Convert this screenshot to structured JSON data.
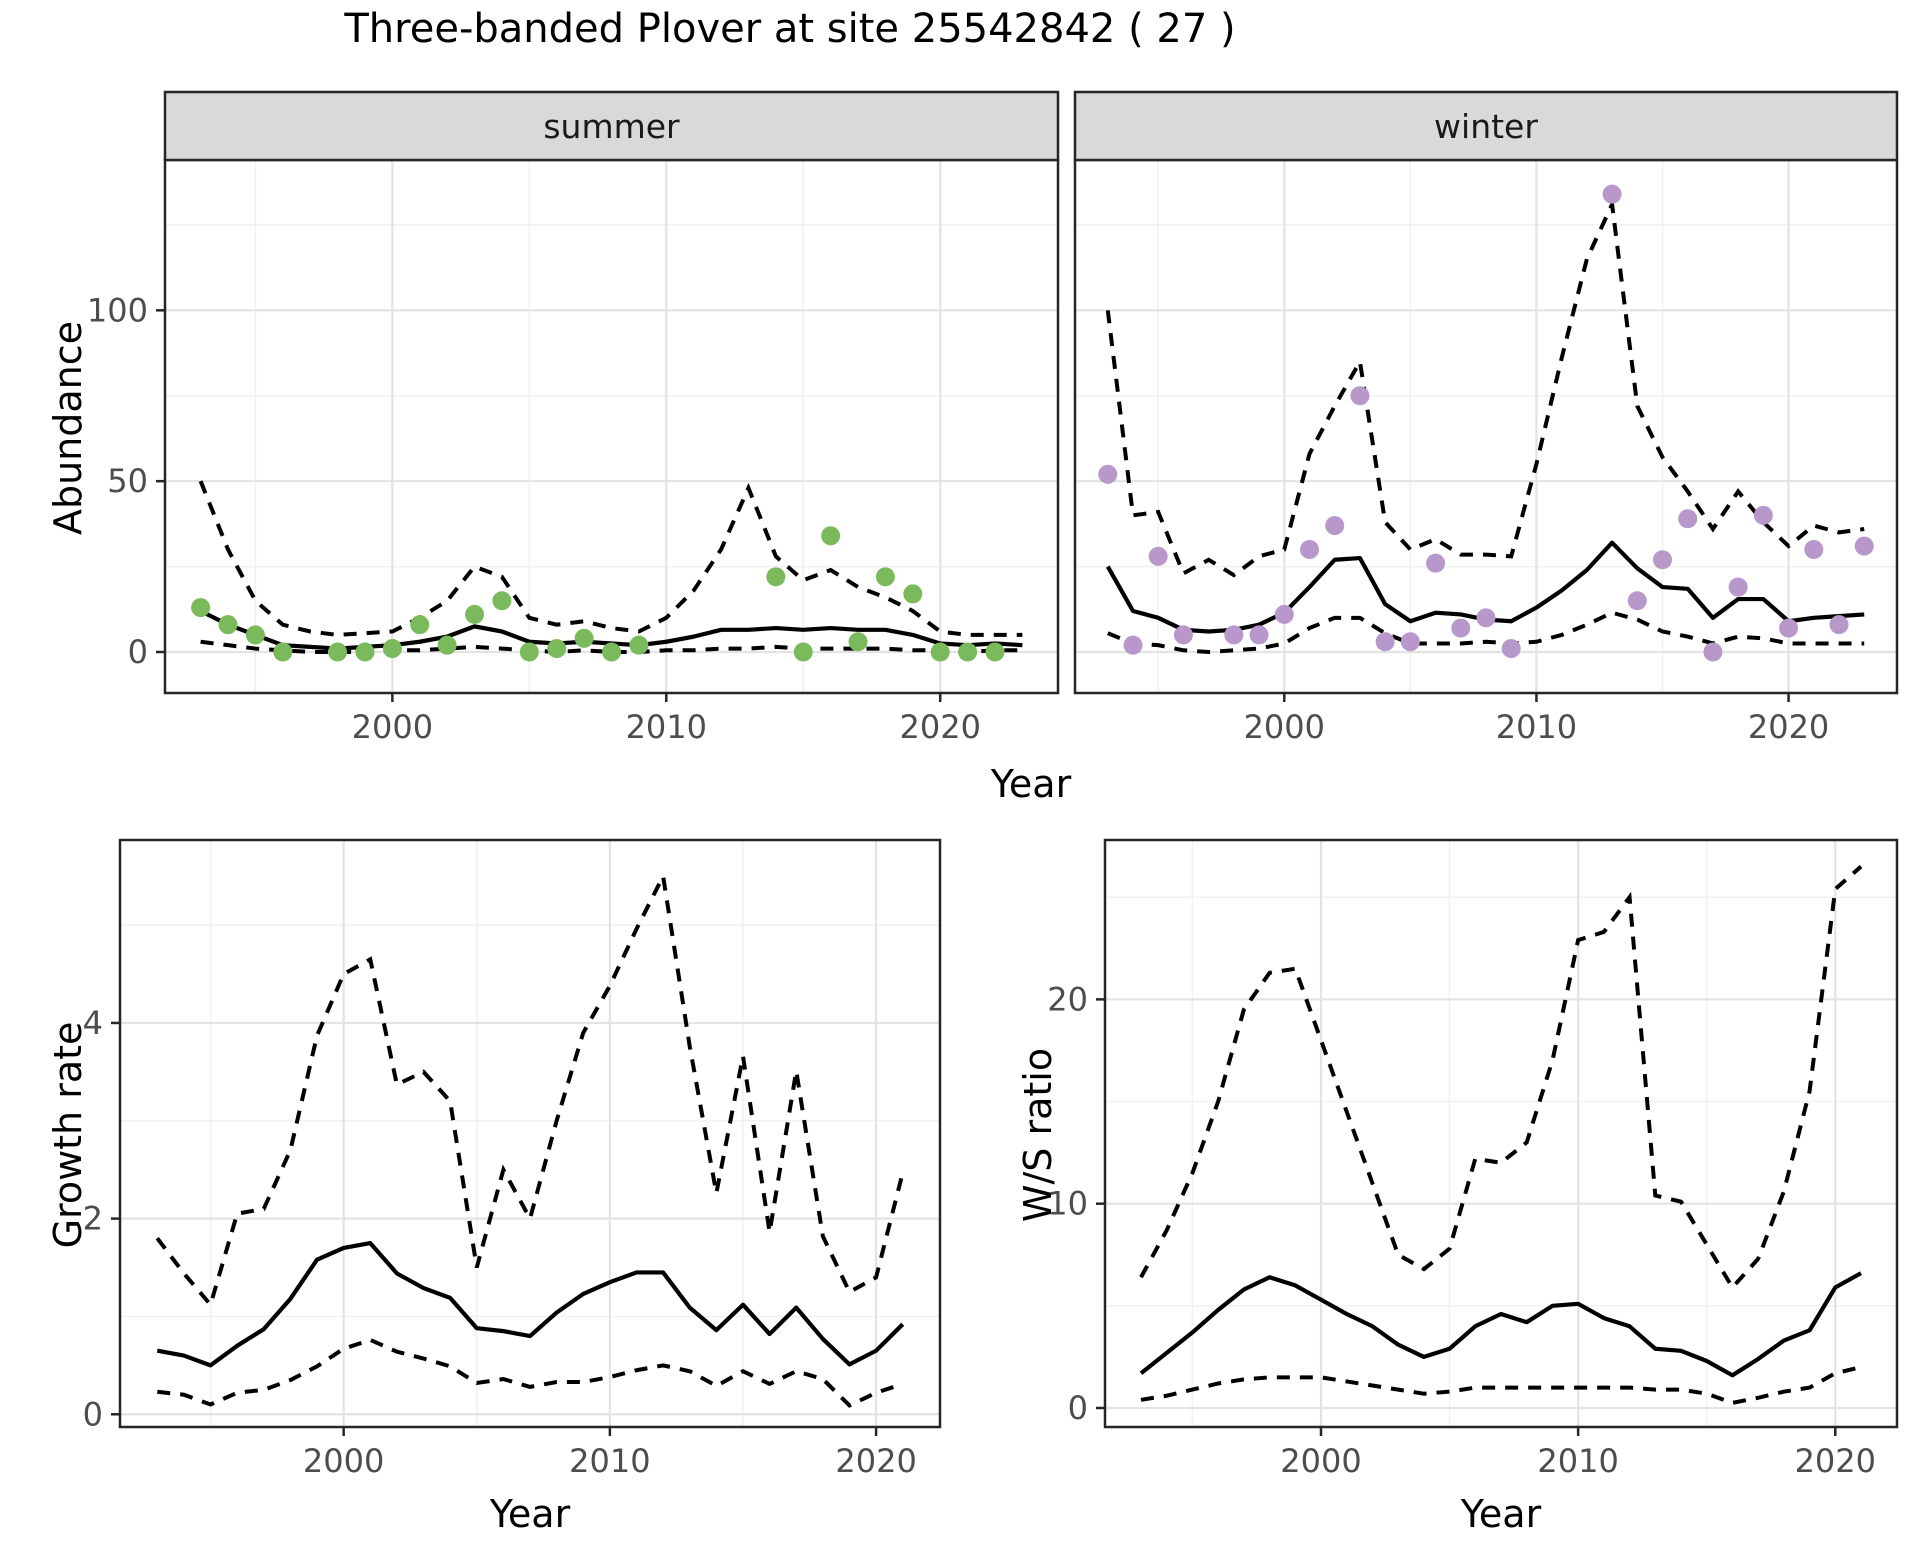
{
  "chart_data": {
    "type": "line",
    "title": "Three-banded Plover at site 25542842 ( 27 )",
    "style": {
      "background": "#ffffff",
      "panel_border": "#262626",
      "grid_major": "#e3e3e3",
      "grid_minor": "#f1f1f1",
      "line_color": "#000000",
      "tick_text_color": "#4d4d4d",
      "strip_fill": "#d9d9d9",
      "summer_point_color": "#7aba5c",
      "winter_point_color": "#b897ca",
      "dash_pattern": "13 10"
    },
    "facets": [
      {
        "id": "summer",
        "strip": "summer",
        "ylabel": "Abundance",
        "xlabel": "Year",
        "xlim": [
          1991.7,
          2024.3
        ],
        "ylim": [
          -12,
          144
        ],
        "xticks": [
          2000,
          2010,
          2020
        ],
        "xticks_minor": [
          1995,
          2005,
          2015
        ],
        "yticks": [
          0,
          50,
          100
        ],
        "yticks_minor": [
          25,
          75,
          125
        ],
        "years": [
          1993,
          1994,
          1995,
          1996,
          1997,
          1998,
          1999,
          2000,
          2001,
          2002,
          2003,
          2004,
          2005,
          2006,
          2007,
          2008,
          2009,
          2010,
          2011,
          2012,
          2013,
          2014,
          2015,
          2016,
          2017,
          2018,
          2019,
          2020,
          2021,
          2022,
          2023
        ],
        "median": [
          12,
          8,
          5,
          2,
          1.5,
          1,
          1.5,
          2,
          3,
          4.5,
          7.5,
          6,
          3,
          2.5,
          3,
          2.5,
          2,
          3,
          4.5,
          6.5,
          6.5,
          7,
          6.5,
          7,
          6.5,
          6.5,
          5,
          2.5,
          2,
          2.5,
          2
        ],
        "lower": [
          3,
          2,
          1,
          0.5,
          0,
          0,
          0,
          0.5,
          0.5,
          1,
          1.5,
          1,
          0.5,
          0,
          0.5,
          0,
          0,
          0.5,
          0.5,
          1,
          1,
          1.5,
          1,
          1,
          1,
          1,
          0.5,
          0.5,
          0,
          0.5,
          0.5
        ],
        "upper": [
          50,
          30,
          15,
          8,
          6,
          5,
          5.5,
          6,
          10,
          15,
          25,
          22,
          10,
          8,
          9,
          7,
          6,
          10,
          18,
          30,
          48,
          28,
          21,
          24,
          19,
          16,
          12,
          6,
          5,
          5,
          5
        ],
        "obs": {
          "years": [
            1993,
            1994,
            1995,
            1996,
            1998,
            1999,
            2000,
            2001,
            2002,
            2003,
            2004,
            2005,
            2006,
            2007,
            2008,
            2009,
            2014,
            2015,
            2016,
            2017,
            2018,
            2019,
            2020,
            2021,
            2022
          ],
          "values": [
            13,
            8,
            5,
            0,
            0,
            0,
            1,
            8,
            2,
            11,
            15,
            0,
            1,
            4,
            0,
            2,
            22,
            0,
            34,
            3,
            22,
            17,
            0,
            0,
            0
          ],
          "color": "#7aba5c"
        }
      },
      {
        "id": "winter",
        "strip": "winter",
        "ylabel": "Abundance",
        "xlabel": "Year",
        "xlim": [
          1991.7,
          2024.3
        ],
        "ylim": [
          -12,
          144
        ],
        "xticks": [
          2000,
          2010,
          2020
        ],
        "xticks_minor": [
          1995,
          2005,
          2015
        ],
        "yticks": [
          0,
          50,
          100
        ],
        "yticks_minor": [
          25,
          75,
          125
        ],
        "years": [
          1993,
          1994,
          1995,
          1996,
          1997,
          1998,
          1999,
          2000,
          2001,
          2002,
          2003,
          2004,
          2005,
          2006,
          2007,
          2008,
          2009,
          2010,
          2011,
          2012,
          2013,
          2014,
          2015,
          2016,
          2017,
          2018,
          2019,
          2020,
          2021,
          2022,
          2023
        ],
        "median": [
          25,
          12,
          10,
          6.5,
          6,
          6.5,
          8,
          11.5,
          19,
          27,
          27.5,
          14,
          9,
          11.5,
          11,
          9.5,
          9,
          13,
          18,
          24,
          32,
          24.5,
          19,
          18.5,
          10,
          15.5,
          15.5,
          9,
          10,
          10.5,
          11
        ],
        "lower": [
          5.5,
          2.5,
          2,
          0.5,
          0,
          0.5,
          1,
          2.5,
          7,
          10,
          10,
          5.5,
          2.5,
          2.5,
          2.5,
          3,
          2.5,
          3,
          5,
          8,
          11.5,
          9.5,
          6,
          4.5,
          2.5,
          4.5,
          4,
          2.5,
          2.5,
          2.5,
          2.5
        ],
        "upper": [
          100,
          40,
          41,
          23,
          27,
          22.5,
          28,
          30,
          58,
          72,
          85,
          38,
          30,
          33,
          28.5,
          28.5,
          28,
          55,
          86,
          115,
          131,
          72,
          57,
          47,
          36,
          47,
          38,
          31,
          37,
          35,
          36
        ],
        "obs": {
          "years": [
            1993,
            1994,
            1995,
            1996,
            1998,
            1999,
            2000,
            2001,
            2002,
            2003,
            2004,
            2005,
            2006,
            2007,
            2008,
            2009,
            2013,
            2014,
            2015,
            2016,
            2017,
            2018,
            2019,
            2020,
            2021,
            2022,
            2023
          ],
          "values": [
            52,
            2,
            28,
            5,
            5,
            5,
            11,
            30,
            37,
            75,
            3,
            3,
            26,
            7,
            10,
            1,
            134,
            15,
            27,
            39,
            0,
            19,
            40,
            7,
            30,
            8,
            31
          ],
          "color": "#b897ca"
        }
      },
      {
        "id": "growth",
        "strip": null,
        "ylabel": "Growth rate",
        "xlabel": "Year",
        "xlim": [
          1991.6,
          2022.4
        ],
        "ylim": [
          -0.13,
          5.87
        ],
        "xticks": [
          2000,
          2010,
          2020
        ],
        "xticks_minor": [
          1995,
          2005,
          2015
        ],
        "yticks": [
          0,
          2,
          4
        ],
        "yticks_minor": [
          1,
          3,
          5
        ],
        "years": [
          1993,
          1994,
          1995,
          1996,
          1997,
          1998,
          1999,
          2000,
          2001,
          2002,
          2003,
          2004,
          2005,
          2006,
          2007,
          2008,
          2009,
          2010,
          2011,
          2012,
          2013,
          2014,
          2015,
          2016,
          2017,
          2018,
          2019,
          2020,
          2021
        ],
        "median": [
          0.65,
          0.6,
          0.5,
          0.7,
          0.87,
          1.18,
          1.58,
          1.7,
          1.75,
          1.44,
          1.29,
          1.19,
          0.88,
          0.85,
          0.8,
          1.04,
          1.23,
          1.35,
          1.45,
          1.45,
          1.09,
          0.86,
          1.12,
          0.82,
          1.09,
          0.77,
          0.51,
          0.65,
          0.92
        ],
        "lower": [
          0.23,
          0.2,
          0.1,
          0.22,
          0.25,
          0.35,
          0.49,
          0.67,
          0.76,
          0.64,
          0.57,
          0.49,
          0.32,
          0.36,
          0.28,
          0.33,
          0.33,
          0.38,
          0.45,
          0.5,
          0.44,
          0.29,
          0.44,
          0.31,
          0.44,
          0.36,
          0.09,
          0.22,
          0.31
        ],
        "upper": [
          1.8,
          1.44,
          1.12,
          2.05,
          2.1,
          2.7,
          3.87,
          4.5,
          4.65,
          3.37,
          3.5,
          3.2,
          1.5,
          2.5,
          2.0,
          3.0,
          3.9,
          4.38,
          4.96,
          5.5,
          3.76,
          2.26,
          3.66,
          1.86,
          3.51,
          1.82,
          1.25,
          1.4,
          2.47
        ]
      },
      {
        "id": "ws",
        "strip": null,
        "ylabel": "W/S ratio",
        "xlabel": "Year",
        "xlim": [
          1991.6,
          2022.4
        ],
        "ylim": [
          -0.93,
          27.8
        ],
        "xticks": [
          2000,
          2010,
          2020
        ],
        "xticks_minor": [
          1995,
          2005,
          2015
        ],
        "yticks": [
          0,
          10,
          20
        ],
        "yticks_minor": [
          5,
          15,
          25
        ],
        "years": [
          1993,
          1994,
          1995,
          1996,
          1997,
          1998,
          1999,
          2000,
          2001,
          2002,
          2003,
          2004,
          2005,
          2006,
          2007,
          2008,
          2009,
          2010,
          2011,
          2012,
          2013,
          2014,
          2015,
          2016,
          2017,
          2018,
          2019,
          2020,
          2021
        ],
        "median": [
          1.7,
          2.7,
          3.7,
          4.8,
          5.8,
          6.4,
          6.0,
          5.3,
          4.6,
          4.0,
          3.1,
          2.5,
          2.9,
          4.0,
          4.6,
          4.2,
          5.0,
          5.1,
          4.4,
          4.0,
          2.9,
          2.8,
          2.3,
          1.6,
          2.4,
          3.3,
          3.8,
          5.9,
          6.6
        ],
        "lower": [
          0.4,
          0.6,
          0.9,
          1.2,
          1.4,
          1.5,
          1.5,
          1.5,
          1.3,
          1.1,
          0.9,
          0.7,
          0.8,
          1.0,
          1.0,
          1.0,
          1.0,
          1.0,
          1.0,
          1.0,
          0.9,
          0.9,
          0.7,
          0.25,
          0.5,
          0.8,
          1.0,
          1.7,
          2.0
        ],
        "upper": [
          6.4,
          8.7,
          11.5,
          15.0,
          19.5,
          21.3,
          21.5,
          18.0,
          14.5,
          11.0,
          7.5,
          6.8,
          7.8,
          12.2,
          12.0,
          13.0,
          17.0,
          22.9,
          23.3,
          25.0,
          10.4,
          10.1,
          8.0,
          5.9,
          7.3,
          10.6,
          15.5,
          25.4,
          26.5
        ]
      }
    ]
  }
}
